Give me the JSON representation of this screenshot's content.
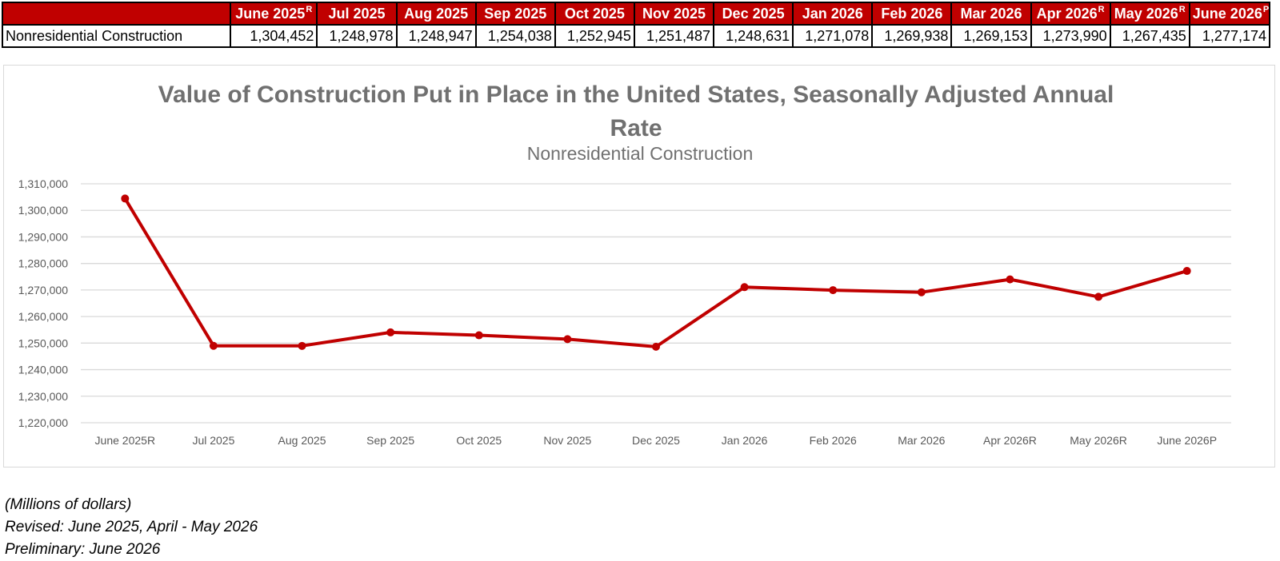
{
  "table": {
    "headers": [
      {
        "label": "June 2025",
        "mark": "R"
      },
      {
        "label": "Jul 2025",
        "mark": ""
      },
      {
        "label": "Aug 2025",
        "mark": ""
      },
      {
        "label": "Sep 2025",
        "mark": ""
      },
      {
        "label": "Oct 2025",
        "mark": ""
      },
      {
        "label": "Nov 2025",
        "mark": ""
      },
      {
        "label": "Dec 2025",
        "mark": ""
      },
      {
        "label": "Jan 2026",
        "mark": ""
      },
      {
        "label": "Feb 2026",
        "mark": ""
      },
      {
        "label": "Mar 2026",
        "mark": ""
      },
      {
        "label": "Apr 2026",
        "mark": "R"
      },
      {
        "label": "May 2026",
        "mark": "R"
      },
      {
        "label": "June 2026",
        "mark": "P"
      }
    ],
    "row_label": "Nonresidential Construction",
    "row_values": [
      "1,304,452",
      "1,248,978",
      "1,248,947",
      "1,254,038",
      "1,252,945",
      "1,251,487",
      "1,248,631",
      "1,271,078",
      "1,269,938",
      "1,269,153",
      "1,273,990",
      "1,267,435",
      "1,277,174"
    ]
  },
  "chart_data": {
    "type": "line",
    "title": "Value of Construction Put in Place in the United States, Seasonally Adjusted Annual Rate",
    "subtitle": "Nonresidential Construction",
    "categories": [
      "June 2025R",
      "Jul 2025",
      "Aug 2025",
      "Sep 2025",
      "Oct 2025",
      "Nov 2025",
      "Dec 2025",
      "Jan 2026",
      "Feb 2026",
      "Mar 2026",
      "Apr 2026R",
      "May 2026R",
      "June 2026P"
    ],
    "series": [
      {
        "values": [
          1304452,
          1248978,
          1248947,
          1254038,
          1252945,
          1251487,
          1248631,
          1271078,
          1269938,
          1269153,
          1273990,
          1267435,
          1277174
        ]
      }
    ],
    "ylim": [
      1220000,
      1310000
    ],
    "yticks": [
      1220000,
      1230000,
      1240000,
      1250000,
      1260000,
      1270000,
      1280000,
      1290000,
      1300000,
      1310000
    ],
    "ytick_labels": [
      "1,220,000",
      "1,230,000",
      "1,240,000",
      "1,250,000",
      "1,260,000",
      "1,270,000",
      "1,280,000",
      "1,290,000",
      "1,300,000",
      "1,310,000"
    ],
    "grid": true,
    "legend": false,
    "line_color": "#c00000",
    "grid_color": "#d9d9d9"
  },
  "notes": {
    "units": "(Millions of dollars)",
    "revised": "Revised: June 2025, April - May 2026",
    "preliminary": "Preliminary: June 2026"
  }
}
